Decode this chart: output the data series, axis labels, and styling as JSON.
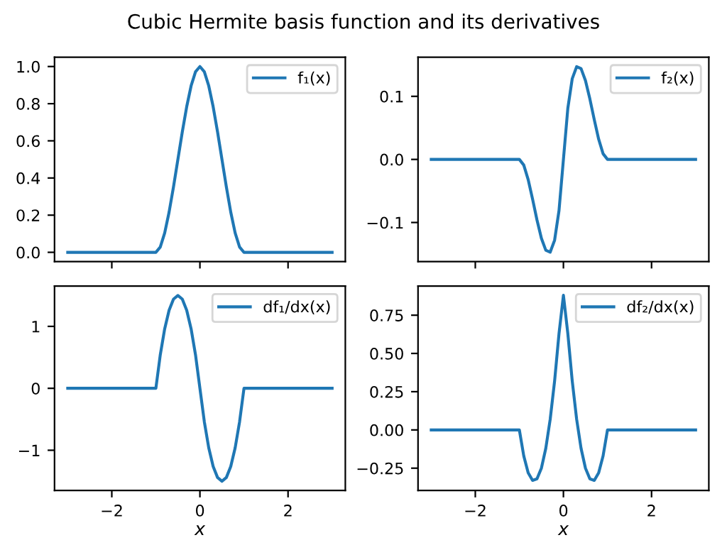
{
  "chart_data": [
    {
      "type": "line",
      "title": "Cubic Hermite basis function and its derivatives",
      "x": [
        -3,
        -1,
        -0.9,
        -0.8,
        -0.7,
        -0.6,
        -0.5,
        -0.4,
        -0.3,
        -0.2,
        -0.1,
        0,
        0.1,
        0.2,
        0.3,
        0.4,
        0.5,
        0.6,
        0.7,
        0.8,
        0.9,
        1,
        3
      ],
      "series": [
        {
          "name": "f₁(x)",
          "color": "#1f77b4",
          "values": [
            0,
            0,
            0.028,
            0.104,
            0.216,
            0.352,
            0.5,
            0.648,
            0.784,
            0.896,
            0.972,
            1,
            0.972,
            0.896,
            0.784,
            0.648,
            0.5,
            0.352,
            0.216,
            0.104,
            0.028,
            0,
            0
          ]
        }
      ],
      "xlim": [
        -3.3,
        3.3
      ],
      "ylim": [
        -0.05,
        1.05
      ],
      "xticks": [
        -2,
        0,
        2
      ],
      "yticks": [
        {
          "value": 0,
          "label": "0.0"
        },
        {
          "value": 0.2,
          "label": "0.2"
        },
        {
          "value": 0.4,
          "label": "0.4"
        },
        {
          "value": 0.6,
          "label": "0.6"
        },
        {
          "value": 0.8,
          "label": "0.8"
        },
        {
          "value": 1,
          "label": "1.0"
        }
      ],
      "tick_labels": "y",
      "legend": "top right",
      "grid": false
    },
    {
      "type": "line",
      "x": [
        -3,
        -1,
        -0.9,
        -0.8,
        -0.7,
        -0.6,
        -0.5,
        -0.4,
        -0.3,
        -0.2,
        -0.1,
        0,
        0.1,
        0.2,
        0.3,
        0.4,
        0.5,
        0.6,
        0.7,
        0.8,
        0.9,
        1,
        3
      ],
      "series": [
        {
          "name": "f₂(x)",
          "color": "#1f77b4",
          "values": [
            0,
            0,
            -0.009,
            -0.032,
            -0.063,
            -0.096,
            -0.125,
            -0.144,
            -0.147,
            -0.128,
            -0.081,
            0,
            0.081,
            0.128,
            0.147,
            0.144,
            0.125,
            0.096,
            0.063,
            0.032,
            0.009,
            0,
            0
          ]
        }
      ],
      "xlim": [
        -3.3,
        3.3
      ],
      "ylim": [
        -0.162,
        0.162
      ],
      "xticks": [
        -2,
        0,
        2
      ],
      "yticks": [
        {
          "value": -0.1,
          "label": "−0.1"
        },
        {
          "value": 0,
          "label": "0.0"
        },
        {
          "value": 0.1,
          "label": "0.1"
        }
      ],
      "tick_labels": "y",
      "legend": "top right",
      "grid": false
    },
    {
      "type": "line",
      "xlabel": "x",
      "x": [
        -3,
        -1,
        -0.9,
        -0.8,
        -0.7,
        -0.6,
        -0.5,
        -0.4,
        -0.3,
        -0.2,
        -0.1,
        0,
        0.1,
        0.2,
        0.3,
        0.4,
        0.5,
        0.6,
        0.7,
        0.8,
        0.9,
        1,
        3
      ],
      "series": [
        {
          "name": "df₁/dx(x)",
          "color": "#1f77b4",
          "values": [
            0,
            0,
            0.54,
            0.96,
            1.26,
            1.44,
            1.5,
            1.44,
            1.26,
            0.96,
            0.54,
            0,
            -0.54,
            -0.96,
            -1.26,
            -1.44,
            -1.5,
            -1.44,
            -1.26,
            -0.96,
            -0.54,
            0,
            0
          ]
        }
      ],
      "xlim": [
        -3.3,
        3.3
      ],
      "ylim": [
        -1.65,
        1.65
      ],
      "xticks": [
        {
          "value": -2,
          "label": "−2"
        },
        0,
        2
      ],
      "yticks": [
        {
          "value": -1,
          "label": "−1"
        },
        0,
        1
      ],
      "legend": "top right",
      "grid": false
    },
    {
      "type": "line",
      "xlabel": "x",
      "x": [
        -3,
        -1,
        -0.9,
        -0.8,
        -0.7,
        -0.6,
        -0.5,
        -0.4,
        -0.3,
        -0.2,
        -0.1,
        0,
        0.1,
        0.2,
        0.3,
        0.4,
        0.5,
        0.6,
        0.7,
        0.8,
        0.9,
        1,
        3
      ],
      "series": [
        {
          "name": "df₂/dx(x)",
          "color": "#1f77b4",
          "values": [
            0,
            0,
            -0.17,
            -0.28,
            -0.33,
            -0.32,
            -0.25,
            -0.12,
            0.07,
            0.32,
            0.63,
            0.88,
            0.63,
            0.32,
            0.07,
            -0.12,
            -0.25,
            -0.32,
            -0.33,
            -0.28,
            -0.17,
            0,
            0
          ]
        }
      ],
      "xlim": [
        -3.3,
        3.3
      ],
      "ylim": [
        -0.396,
        0.94
      ],
      "xticks": [
        {
          "value": -2,
          "label": "−2"
        },
        0,
        2
      ],
      "yticks": [
        {
          "value": -0.25,
          "label": "−0.25"
        },
        {
          "value": 0,
          "label": "0.00"
        },
        {
          "value": 0.25,
          "label": "0.25"
        },
        {
          "value": 0.5,
          "label": "0.50"
        },
        {
          "value": 0.75,
          "label": "0.75"
        }
      ],
      "legend": "top right",
      "grid": false
    }
  ]
}
